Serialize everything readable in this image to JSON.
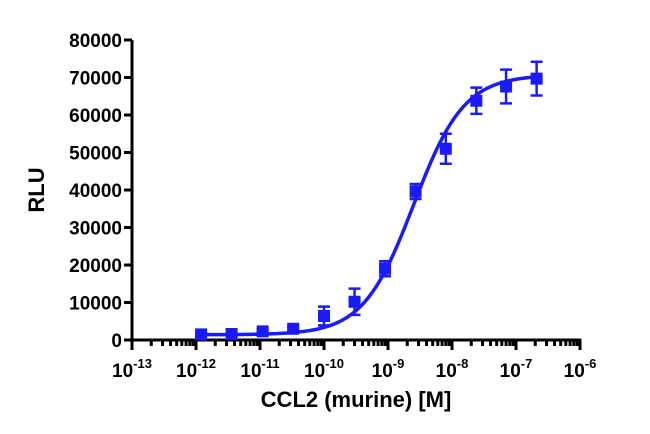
{
  "chart_data": {
    "type": "scatter",
    "xlabel": "CCL2 (murine) [M]",
    "ylabel": "RLU",
    "x_scale": "log",
    "xlim": [
      1e-13,
      1e-06
    ],
    "ylim": [
      0,
      80000
    ],
    "x_ticks": [
      {
        "base": "10",
        "exp": "-13"
      },
      {
        "base": "10",
        "exp": "-12"
      },
      {
        "base": "10",
        "exp": "-11"
      },
      {
        "base": "10",
        "exp": "-10"
      },
      {
        "base": "10",
        "exp": "-9"
      },
      {
        "base": "10",
        "exp": "-8"
      },
      {
        "base": "10",
        "exp": "-7"
      },
      {
        "base": "10",
        "exp": "-6"
      }
    ],
    "y_ticks": [
      "0",
      "10000",
      "20000",
      "30000",
      "40000",
      "50000",
      "60000",
      "70000",
      "80000"
    ],
    "series_color": "#1a1aff",
    "marker": "square",
    "fit_curve": "sigmoidal dose-response",
    "points": [
      {
        "x": 1.2e-12,
        "y": 1500,
        "err": 300
      },
      {
        "x": 3.6e-12,
        "y": 1600,
        "err": 300
      },
      {
        "x": 1.1e-11,
        "y": 2300,
        "err": 500
      },
      {
        "x": 3.3e-11,
        "y": 3000,
        "err": 500
      },
      {
        "x": 1e-10,
        "y": 6400,
        "err": 2500
      },
      {
        "x": 3e-10,
        "y": 10200,
        "err": 3500
      },
      {
        "x": 9e-10,
        "y": 19000,
        "err": 2000
      },
      {
        "x": 2.7e-09,
        "y": 39600,
        "err": 2000
      },
      {
        "x": 8e-09,
        "y": 51000,
        "err": 4000
      },
      {
        "x": 2.4e-08,
        "y": 63800,
        "err": 3500
      },
      {
        "x": 7e-08,
        "y": 67600,
        "err": 4500
      },
      {
        "x": 2.1e-07,
        "y": 69700,
        "err": 4500
      }
    ],
    "fit": {
      "bottom": 1400,
      "top": 70700,
      "log_ec50": -8.6,
      "hill": 1.1
    }
  }
}
